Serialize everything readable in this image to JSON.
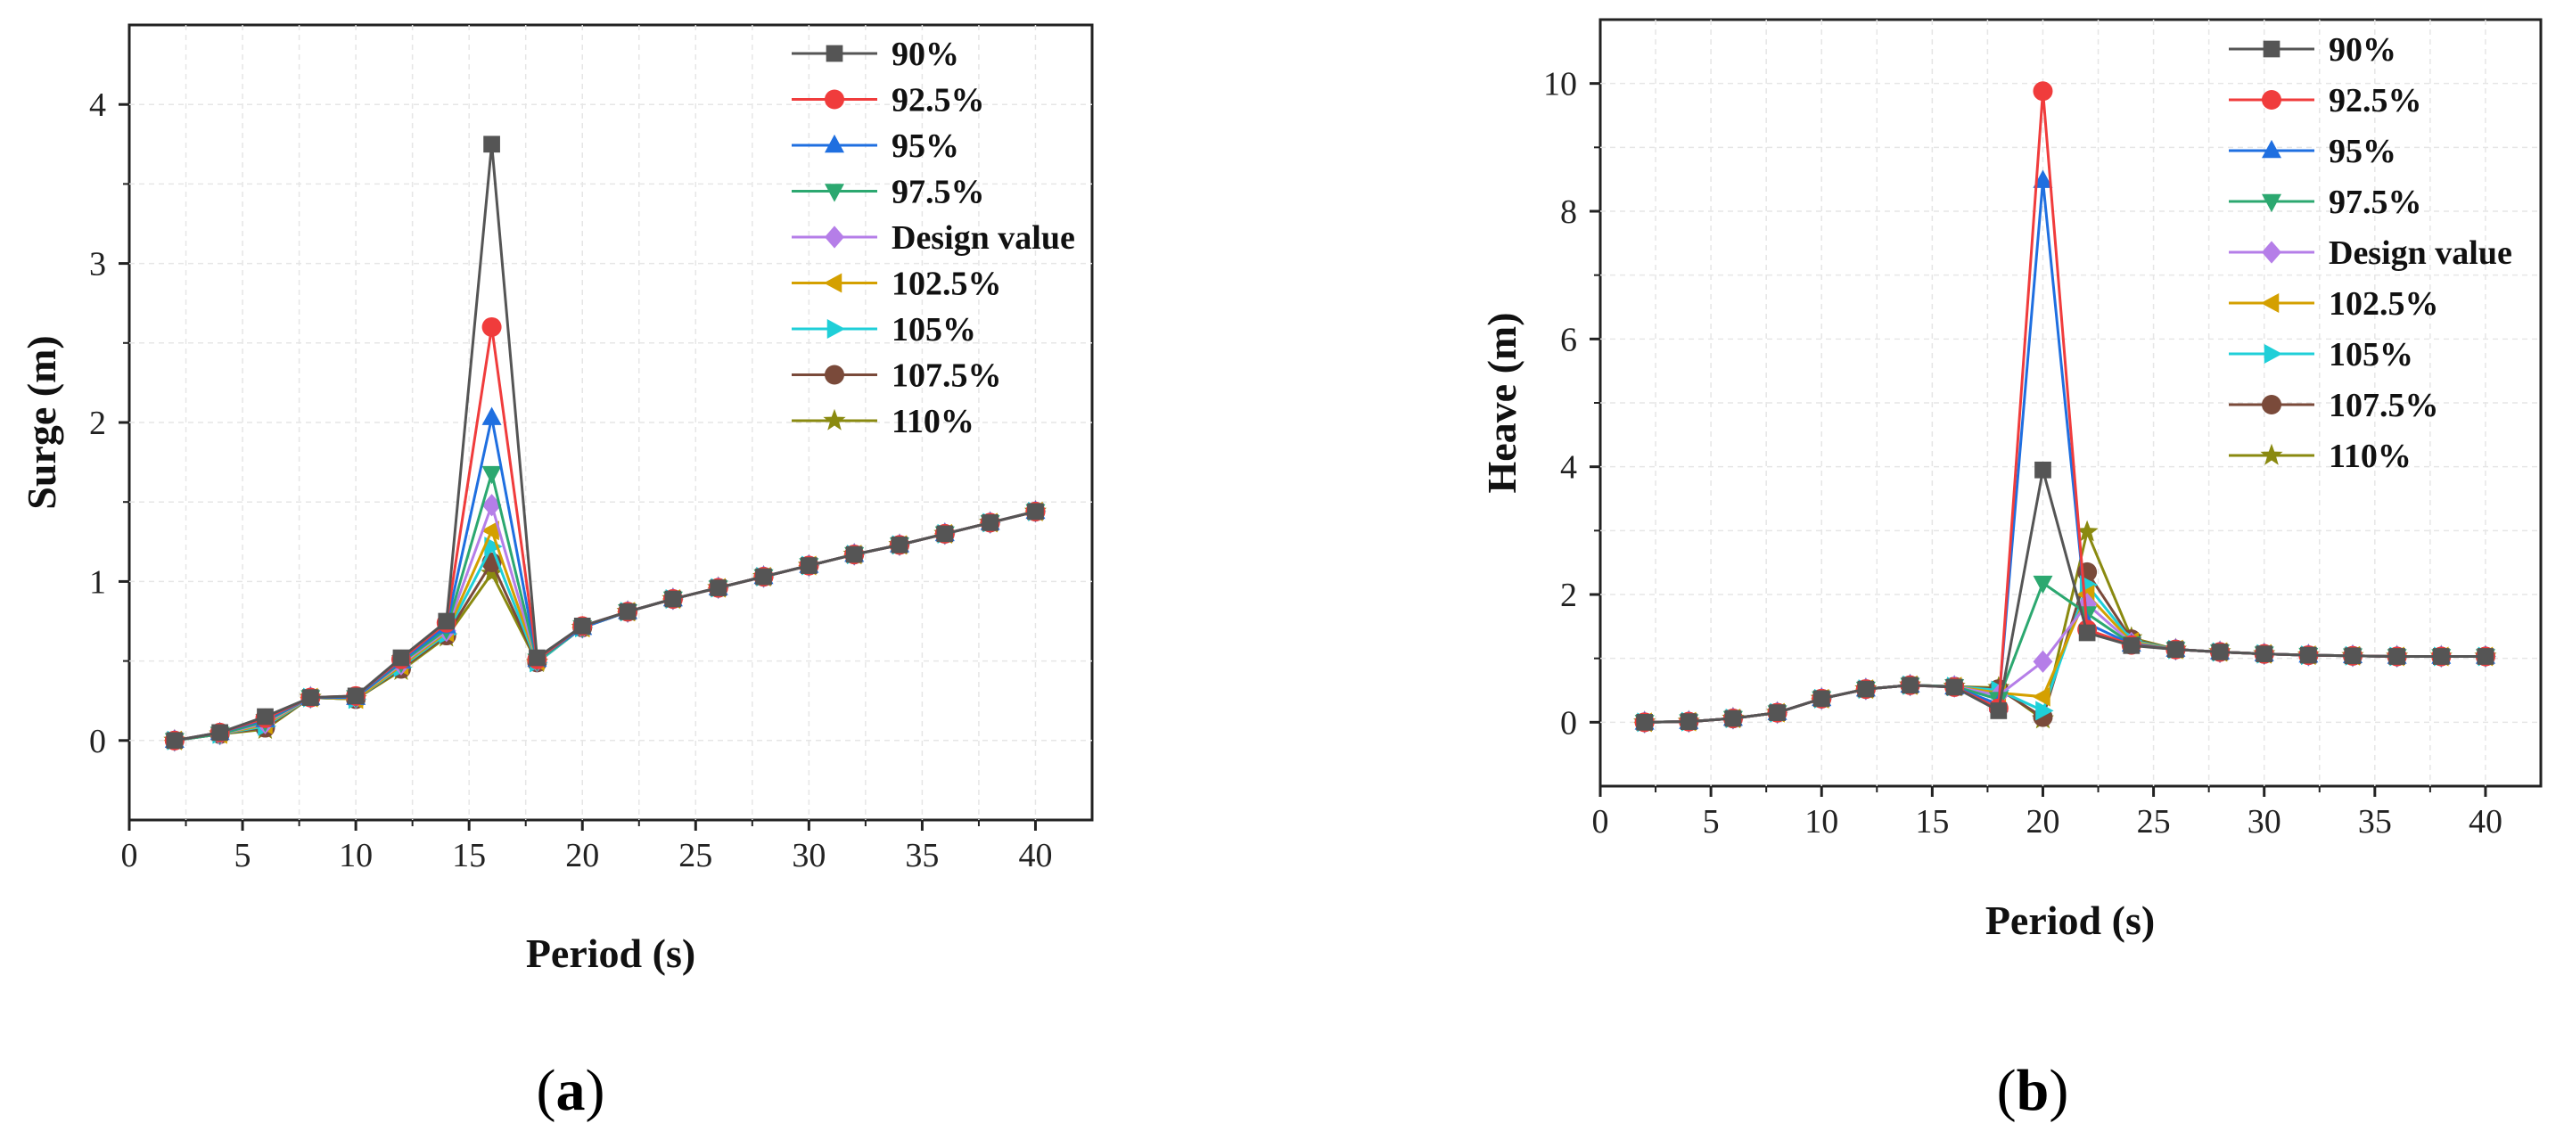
{
  "chart_data": [
    {
      "type": "line",
      "caption": "a",
      "xlabel": "Period (s)",
      "ylabel": "Surge (m)",
      "xlim": [
        0,
        42.5
      ],
      "ylim": [
        -0.5,
        4.5
      ],
      "xticks": [
        0,
        5,
        10,
        15,
        20,
        25,
        30,
        35,
        40
      ],
      "yticks": [
        0,
        1,
        2,
        3,
        4
      ],
      "grid": true,
      "legend_position": "top-right",
      "x": [
        2,
        4,
        6,
        8,
        10,
        12,
        14,
        16,
        18,
        20,
        22,
        24,
        26,
        28,
        30,
        32,
        34,
        36,
        38,
        40
      ],
      "series": [
        {
          "name": "90%",
          "color": "#555555",
          "marker": "square",
          "values": [
            0,
            0.05,
            0.15,
            0.27,
            0.28,
            0.52,
            0.75,
            3.75,
            0.52,
            0.72,
            0.81,
            0.89,
            0.96,
            1.03,
            1.1,
            1.17,
            1.23,
            1.3,
            1.37,
            1.44
          ]
        },
        {
          "name": "92.5%",
          "color": "#f03c3c",
          "marker": "circle",
          "values": [
            0,
            0.05,
            0.14,
            0.27,
            0.28,
            0.51,
            0.74,
            2.6,
            0.51,
            0.72,
            0.81,
            0.89,
            0.96,
            1.03,
            1.1,
            1.17,
            1.23,
            1.3,
            1.37,
            1.44
          ]
        },
        {
          "name": "95%",
          "color": "#1f6fe0",
          "marker": "triangle-up",
          "values": [
            0,
            0.05,
            0.13,
            0.27,
            0.27,
            0.5,
            0.72,
            2.03,
            0.51,
            0.71,
            0.81,
            0.89,
            0.96,
            1.03,
            1.1,
            1.17,
            1.23,
            1.3,
            1.37,
            1.44
          ]
        },
        {
          "name": "97.5%",
          "color": "#2ca870",
          "marker": "triangle-down",
          "values": [
            0,
            0.04,
            0.12,
            0.27,
            0.27,
            0.49,
            0.7,
            1.68,
            0.5,
            0.71,
            0.81,
            0.89,
            0.96,
            1.03,
            1.1,
            1.17,
            1.23,
            1.3,
            1.37,
            1.44
          ]
        },
        {
          "name": "Design value",
          "color": "#b57ee8",
          "marker": "diamond",
          "values": [
            0,
            0.04,
            0.11,
            0.27,
            0.27,
            0.48,
            0.69,
            1.48,
            0.5,
            0.71,
            0.81,
            0.89,
            0.96,
            1.03,
            1.1,
            1.17,
            1.23,
            1.3,
            1.37,
            1.44
          ]
        },
        {
          "name": "102.5%",
          "color": "#d4a000",
          "marker": "triangle-left",
          "values": [
            0,
            0.04,
            0.1,
            0.27,
            0.26,
            0.47,
            0.68,
            1.32,
            0.5,
            0.71,
            0.81,
            0.89,
            0.96,
            1.03,
            1.1,
            1.17,
            1.23,
            1.3,
            1.37,
            1.44
          ]
        },
        {
          "name": "105%",
          "color": "#1fcfd8",
          "marker": "triangle-right",
          "values": [
            0,
            0.04,
            0.09,
            0.27,
            0.26,
            0.46,
            0.67,
            1.22,
            0.49,
            0.71,
            0.81,
            0.89,
            0.96,
            1.03,
            1.1,
            1.17,
            1.23,
            1.3,
            1.37,
            1.44
          ]
        },
        {
          "name": "107.5%",
          "color": "#7a4a3a",
          "marker": "circle",
          "values": [
            0,
            0.04,
            0.08,
            0.27,
            0.26,
            0.45,
            0.66,
            1.12,
            0.49,
            0.71,
            0.81,
            0.89,
            0.96,
            1.03,
            1.1,
            1.17,
            1.23,
            1.3,
            1.37,
            1.44
          ]
        },
        {
          "name": "110%",
          "color": "#8a8a10",
          "marker": "star",
          "values": [
            0,
            0.04,
            0.07,
            0.27,
            0.26,
            0.44,
            0.65,
            1.05,
            0.49,
            0.71,
            0.81,
            0.89,
            0.96,
            1.03,
            1.1,
            1.17,
            1.23,
            1.3,
            1.37,
            1.44
          ]
        }
      ]
    },
    {
      "type": "line",
      "caption": "b",
      "xlabel": "Period (s)",
      "ylabel": "Heave (m)",
      "xlim": [
        0,
        42.5
      ],
      "ylim": [
        -1,
        11
      ],
      "xticks": [
        0,
        5,
        10,
        15,
        20,
        25,
        30,
        35,
        40
      ],
      "yticks": [
        0,
        2,
        4,
        6,
        8,
        10
      ],
      "grid": true,
      "legend_position": "top-right",
      "x": [
        2,
        4,
        6,
        8,
        10,
        12,
        14,
        16,
        18,
        20,
        22,
        24,
        26,
        28,
        30,
        32,
        34,
        36,
        38,
        40
      ],
      "series": [
        {
          "name": "90%",
          "color": "#555555",
          "marker": "square",
          "values": [
            0,
            0.01,
            0.06,
            0.15,
            0.37,
            0.52,
            0.58,
            0.55,
            0.18,
            3.95,
            1.4,
            1.2,
            1.14,
            1.1,
            1.07,
            1.05,
            1.04,
            1.03,
            1.03,
            1.03
          ]
        },
        {
          "name": "92.5%",
          "color": "#f03c3c",
          "marker": "circle",
          "values": [
            0,
            0.01,
            0.06,
            0.15,
            0.37,
            0.52,
            0.58,
            0.55,
            0.22,
            9.88,
            1.45,
            1.21,
            1.14,
            1.1,
            1.07,
            1.05,
            1.04,
            1.03,
            1.03,
            1.03
          ]
        },
        {
          "name": "95%",
          "color": "#1f6fe0",
          "marker": "triangle-up",
          "values": [
            0,
            0.01,
            0.06,
            0.15,
            0.37,
            0.52,
            0.58,
            0.55,
            0.28,
            8.48,
            1.55,
            1.22,
            1.14,
            1.1,
            1.07,
            1.05,
            1.04,
            1.03,
            1.03,
            1.03
          ]
        },
        {
          "name": "97.5%",
          "color": "#2ca870",
          "marker": "triangle-down",
          "values": [
            0,
            0.01,
            0.06,
            0.15,
            0.37,
            0.52,
            0.58,
            0.56,
            0.36,
            2.18,
            1.7,
            1.23,
            1.14,
            1.1,
            1.07,
            1.05,
            1.04,
            1.03,
            1.03,
            1.03
          ]
        },
        {
          "name": "Design value",
          "color": "#b57ee8",
          "marker": "diamond",
          "values": [
            0,
            0.01,
            0.06,
            0.15,
            0.37,
            0.52,
            0.58,
            0.56,
            0.42,
            0.95,
            1.85,
            1.24,
            1.14,
            1.1,
            1.07,
            1.05,
            1.04,
            1.03,
            1.03,
            1.03
          ]
        },
        {
          "name": "102.5%",
          "color": "#d4a000",
          "marker": "triangle-left",
          "values": [
            0,
            0.01,
            0.06,
            0.15,
            0.37,
            0.52,
            0.58,
            0.56,
            0.46,
            0.4,
            2.0,
            1.26,
            1.14,
            1.1,
            1.07,
            1.05,
            1.04,
            1.03,
            1.03,
            1.03
          ]
        },
        {
          "name": "105%",
          "color": "#1fcfd8",
          "marker": "triangle-right",
          "values": [
            0,
            0.01,
            0.06,
            0.15,
            0.37,
            0.52,
            0.58,
            0.56,
            0.5,
            0.18,
            2.15,
            1.28,
            1.14,
            1.1,
            1.07,
            1.05,
            1.04,
            1.03,
            1.03,
            1.03
          ]
        },
        {
          "name": "107.5%",
          "color": "#7a4a3a",
          "marker": "circle",
          "values": [
            0,
            0.01,
            0.06,
            0.15,
            0.37,
            0.52,
            0.58,
            0.56,
            0.52,
            0.08,
            2.35,
            1.3,
            1.14,
            1.1,
            1.07,
            1.05,
            1.04,
            1.03,
            1.03,
            1.03
          ]
        },
        {
          "name": "110%",
          "color": "#8a8a10",
          "marker": "star",
          "values": [
            0,
            0.01,
            0.06,
            0.15,
            0.37,
            0.52,
            0.58,
            0.56,
            0.54,
            0.05,
            2.98,
            1.32,
            1.14,
            1.1,
            1.07,
            1.05,
            1.04,
            1.03,
            1.03,
            1.03
          ]
        }
      ]
    }
  ]
}
